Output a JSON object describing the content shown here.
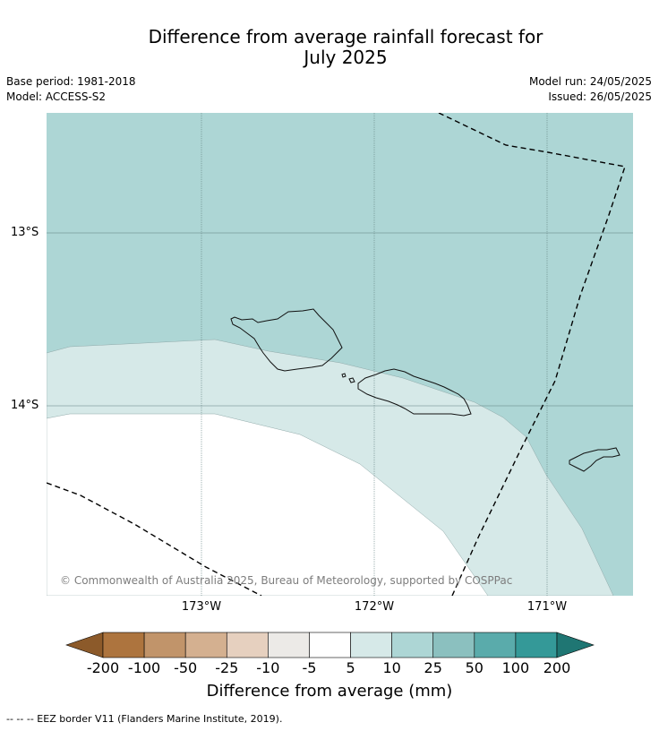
{
  "title_line1": "Difference from average rainfall forecast for",
  "title_line2": "July 2025",
  "base_period": "Base period: 1981-2018",
  "model": "Model: ACCESS-S2",
  "model_run": "Model run: 24/05/2025",
  "issued": "Issued: 26/05/2025",
  "lat_labels": [
    "13°S",
    "14°S"
  ],
  "lon_labels": [
    "173°W",
    "172°W",
    "171°W"
  ],
  "copyright": "© Commonwealth of Australia 2025, Bureau of Meteorology, supported by COSPPac",
  "colorbar": {
    "title": "Difference from average (mm)",
    "ticks": [
      "-200",
      "-100",
      "-50",
      "-25",
      "-10",
      "-5",
      "5",
      "10",
      "25",
      "50",
      "100",
      "200"
    ],
    "colors": [
      "#8c5a2a",
      "#ad743e",
      "#c1946a",
      "#d4b090",
      "#e6d0bf",
      "#eceae7",
      "#ffffff",
      "#d6e9e8",
      "#add6d5",
      "#8bc0bf",
      "#5aabab",
      "#349998",
      "#1f7673"
    ]
  },
  "map_colors": {
    "region_10_25": "#add6d5",
    "region_5_10": "#d6e9e8",
    "region_neutral": "#ffffff"
  },
  "footnote": "--  --  -- EEZ border V11 (Flanders Marine Institute, 2019)."
}
